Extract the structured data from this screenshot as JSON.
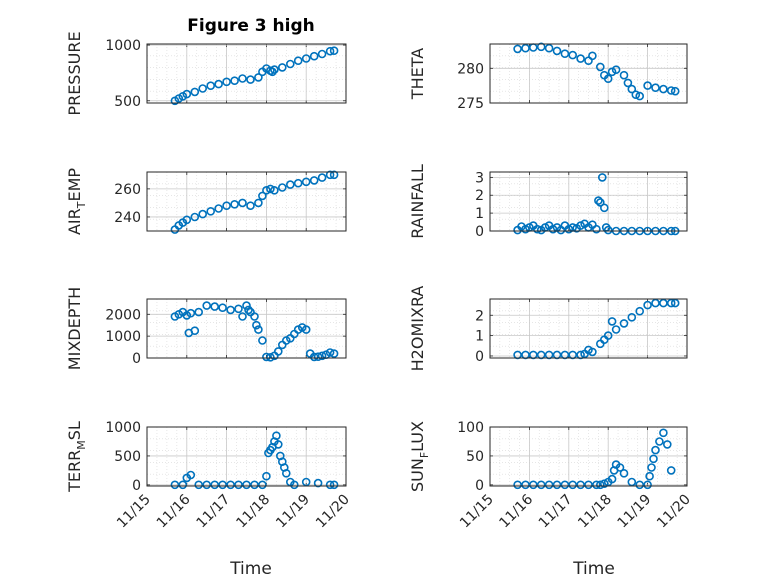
{
  "title": "Figure 3 high",
  "marker_color": "#0072BD",
  "xtick_labels": [
    "11/15",
    "11/16",
    "11/17",
    "11/18",
    "11/19",
    "11/20"
  ],
  "xlabel": "Time",
  "chart_data": [
    {
      "type": "scatter",
      "name": "PRESSURE",
      "ylabel": "PRESSURE",
      "title": "Figure 3 high",
      "xlim": [
        15,
        20
      ],
      "ylim": [
        480,
        1010
      ],
      "yticks": [
        500,
        1000
      ],
      "grid": true,
      "x": [
        15.7,
        15.8,
        15.9,
        16.0,
        16.2,
        16.4,
        16.6,
        16.8,
        17.0,
        17.2,
        17.4,
        17.6,
        17.8,
        17.9,
        18.0,
        18.1,
        18.15,
        18.2,
        18.4,
        18.6,
        18.8,
        19.0,
        19.2,
        19.4,
        19.6,
        19.7
      ],
      "y": [
        500,
        520,
        540,
        560,
        580,
        610,
        635,
        650,
        670,
        680,
        700,
        690,
        710,
        760,
        790,
        770,
        760,
        780,
        800,
        830,
        860,
        880,
        900,
        920,
        945,
        950
      ]
    },
    {
      "type": "scatter",
      "name": "THETA",
      "ylabel": "THETA",
      "xlim": [
        15,
        20
      ],
      "ylim": [
        275,
        283.5
      ],
      "yticks": [
        275,
        280
      ],
      "grid": true,
      "x": [
        15.7,
        15.9,
        16.1,
        16.3,
        16.5,
        16.7,
        16.9,
        17.1,
        17.3,
        17.5,
        17.6,
        17.8,
        17.9,
        18.0,
        18.1,
        18.2,
        18.4,
        18.5,
        18.6,
        18.7,
        18.8,
        19.0,
        19.2,
        19.4,
        19.6,
        19.7
      ],
      "y": [
        282.8,
        282.9,
        283.0,
        283.1,
        282.9,
        282.5,
        282.1,
        281.9,
        281.4,
        281.1,
        281.8,
        280.2,
        279.0,
        278.5,
        279.5,
        279.8,
        279.0,
        277.9,
        277.0,
        276.2,
        276.0,
        277.5,
        277.2,
        277.0,
        276.8,
        276.7
      ]
    },
    {
      "type": "scatter",
      "name": "AIR_TEMP",
      "ylabel": "AIR_TEMP",
      "xlim": [
        15,
        20
      ],
      "ylim": [
        230,
        272
      ],
      "yticks": [
        240,
        260
      ],
      "grid": true,
      "x": [
        15.7,
        15.8,
        15.9,
        16.0,
        16.2,
        16.4,
        16.6,
        16.8,
        17.0,
        17.2,
        17.4,
        17.6,
        17.8,
        17.9,
        18.0,
        18.1,
        18.2,
        18.4,
        18.6,
        18.8,
        19.0,
        19.2,
        19.4,
        19.6,
        19.7
      ],
      "y": [
        231,
        234,
        236,
        238,
        240,
        242,
        244,
        246,
        248,
        249,
        250,
        248,
        250,
        255,
        259,
        260,
        259,
        261,
        263,
        264,
        265,
        266,
        268,
        270,
        270
      ]
    },
    {
      "type": "scatter",
      "name": "RAINFALL",
      "ylabel": "RAINFALL",
      "xlim": [
        15,
        20
      ],
      "ylim": [
        0,
        3.3
      ],
      "yticks": [
        0,
        1,
        2,
        3
      ],
      "grid": true,
      "x": [
        15.7,
        15.8,
        15.9,
        16.0,
        16.1,
        16.2,
        16.3,
        16.4,
        16.5,
        16.6,
        16.7,
        16.8,
        16.9,
        17.0,
        17.1,
        17.2,
        17.3,
        17.4,
        17.5,
        17.6,
        17.7,
        17.75,
        17.8,
        17.85,
        17.9,
        17.95,
        18.0,
        18.2,
        18.4,
        18.6,
        18.8,
        19.0,
        19.2,
        19.4,
        19.6,
        19.7
      ],
      "y": [
        0.05,
        0.25,
        0.1,
        0.2,
        0.3,
        0.1,
        0.05,
        0.2,
        0.3,
        0.1,
        0.2,
        0.05,
        0.3,
        0.1,
        0.2,
        0.15,
        0.3,
        0.4,
        0.2,
        0.35,
        0.1,
        1.7,
        1.6,
        3.0,
        1.3,
        0.2,
        0.05,
        0.0,
        0.0,
        0.0,
        0.0,
        0.0,
        0.0,
        0.0,
        0.0,
        0.0
      ]
    },
    {
      "type": "scatter",
      "name": "MIXDEPTH",
      "ylabel": "MIXDEPTH",
      "xlim": [
        15,
        20
      ],
      "ylim": [
        0,
        2700
      ],
      "yticks": [
        0,
        1000,
        2000
      ],
      "grid": true,
      "x": [
        15.7,
        15.8,
        15.9,
        16.0,
        16.05,
        16.1,
        16.2,
        16.3,
        16.5,
        16.7,
        16.9,
        17.1,
        17.3,
        17.4,
        17.5,
        17.55,
        17.6,
        17.7,
        17.75,
        17.8,
        17.9,
        18.0,
        18.1,
        18.2,
        18.3,
        18.4,
        18.5,
        18.6,
        18.7,
        18.8,
        18.9,
        19.0,
        19.1,
        19.2,
        19.3,
        19.4,
        19.5,
        19.6,
        19.7
      ],
      "y": [
        1900,
        2000,
        2100,
        1950,
        1150,
        2050,
        1250,
        2100,
        2400,
        2350,
        2300,
        2200,
        2250,
        1900,
        2400,
        2200,
        2100,
        1900,
        1500,
        1300,
        800,
        50,
        30,
        100,
        300,
        600,
        800,
        900,
        1100,
        1300,
        1400,
        1300,
        200,
        50,
        60,
        100,
        150,
        250,
        200
      ]
    },
    {
      "type": "scatter",
      "name": "H2OMIXRA",
      "ylabel": "H2OMIXRA",
      "xlim": [
        15,
        20
      ],
      "ylim": [
        -0.1,
        2.8
      ],
      "yticks": [
        0,
        1,
        2
      ],
      "grid": true,
      "x": [
        15.7,
        15.9,
        16.1,
        16.3,
        16.5,
        16.7,
        16.9,
        17.1,
        17.3,
        17.4,
        17.5,
        17.6,
        17.8,
        17.9,
        18.0,
        18.1,
        18.2,
        18.4,
        18.6,
        18.8,
        19.0,
        19.2,
        19.4,
        19.6,
        19.7
      ],
      "y": [
        0.05,
        0.05,
        0.05,
        0.05,
        0.05,
        0.05,
        0.05,
        0.05,
        0.05,
        0.1,
        0.3,
        0.2,
        0.6,
        0.8,
        1.0,
        1.7,
        1.3,
        1.6,
        1.9,
        2.2,
        2.5,
        2.6,
        2.6,
        2.6,
        2.6
      ]
    },
    {
      "type": "scatter",
      "name": "TERR_MSL",
      "ylabel": "TERR_MSL",
      "xlim": [
        15,
        20
      ],
      "ylim": [
        -20,
        1000
      ],
      "yticks": [
        0,
        500,
        1000
      ],
      "grid": true,
      "x": [
        15.7,
        15.9,
        16.0,
        16.1,
        16.3,
        16.5,
        16.7,
        16.9,
        17.1,
        17.3,
        17.5,
        17.7,
        17.9,
        18.0,
        18.05,
        18.1,
        18.15,
        18.2,
        18.25,
        18.3,
        18.35,
        18.4,
        18.45,
        18.5,
        18.6,
        18.7,
        19.0,
        19.3,
        19.6,
        19.7
      ],
      "y": [
        0,
        0,
        120,
        170,
        0,
        0,
        0,
        0,
        0,
        0,
        0,
        0,
        0,
        150,
        550,
        600,
        650,
        750,
        850,
        700,
        500,
        400,
        300,
        200,
        50,
        0,
        50,
        30,
        0,
        0
      ]
    },
    {
      "type": "scatter",
      "name": "SUN_FLUX",
      "ylabel": "SUN_FLUX",
      "xlim": [
        15,
        20
      ],
      "ylim": [
        -2,
        100
      ],
      "yticks": [
        0,
        50,
        100
      ],
      "grid": true,
      "x": [
        15.7,
        15.9,
        16.1,
        16.3,
        16.5,
        16.7,
        16.9,
        17.1,
        17.3,
        17.5,
        17.7,
        17.8,
        17.9,
        18.0,
        18.1,
        18.15,
        18.2,
        18.3,
        18.4,
        18.6,
        18.8,
        19.0,
        19.05,
        19.1,
        19.15,
        19.2,
        19.3,
        19.4,
        19.5,
        19.6
      ],
      "y": [
        0,
        0,
        0,
        0,
        0,
        0,
        0,
        0,
        0,
        0,
        0,
        0,
        2,
        5,
        10,
        25,
        35,
        30,
        20,
        5,
        0,
        0,
        15,
        30,
        45,
        60,
        75,
        90,
        70,
        25
      ]
    }
  ]
}
